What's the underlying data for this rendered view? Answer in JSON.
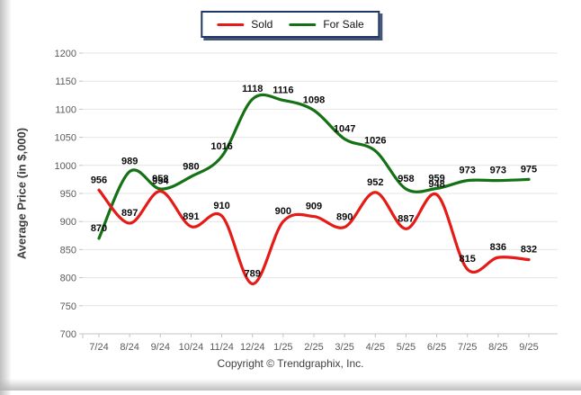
{
  "page": {
    "copyright": "Copyright © Trendgraphix, Inc."
  },
  "legend": {
    "position": "top-center",
    "items": [
      {
        "label": "Sold",
        "color": "#e41b17"
      },
      {
        "label": "For Sale",
        "color": "#147114"
      }
    ]
  },
  "y_axis": {
    "title": "Average Price (in $,000)",
    "ticks": [
      700,
      750,
      800,
      850,
      900,
      950,
      1000,
      1050,
      1100,
      1150,
      1200
    ]
  },
  "chart_data": {
    "type": "line",
    "title": "",
    "xlabel": "",
    "ylabel": "Average Price (in $,000)",
    "categories": [
      "7/24",
      "8/24",
      "9/24",
      "10/24",
      "11/24",
      "12/24",
      "1/25",
      "2/25",
      "3/25",
      "4/25",
      "5/25",
      "6/25",
      "7/25",
      "8/25",
      "9/25"
    ],
    "series": [
      {
        "name": "Sold",
        "color": "#e41b17",
        "values": [
          956,
          897,
          954,
          891,
          910,
          789,
          900,
          909,
          890,
          952,
          887,
          948,
          815,
          836,
          832
        ]
      },
      {
        "name": "For Sale",
        "color": "#147114",
        "values": [
          870,
          989,
          958,
          980,
          1016,
          1118,
          1116,
          1098,
          1047,
          1026,
          958,
          959,
          973,
          973,
          975
        ]
      }
    ],
    "ylim": [
      700,
      1200
    ],
    "ytick_step": 50,
    "grid": true,
    "smoothed": true,
    "legend_position": "top-center"
  }
}
